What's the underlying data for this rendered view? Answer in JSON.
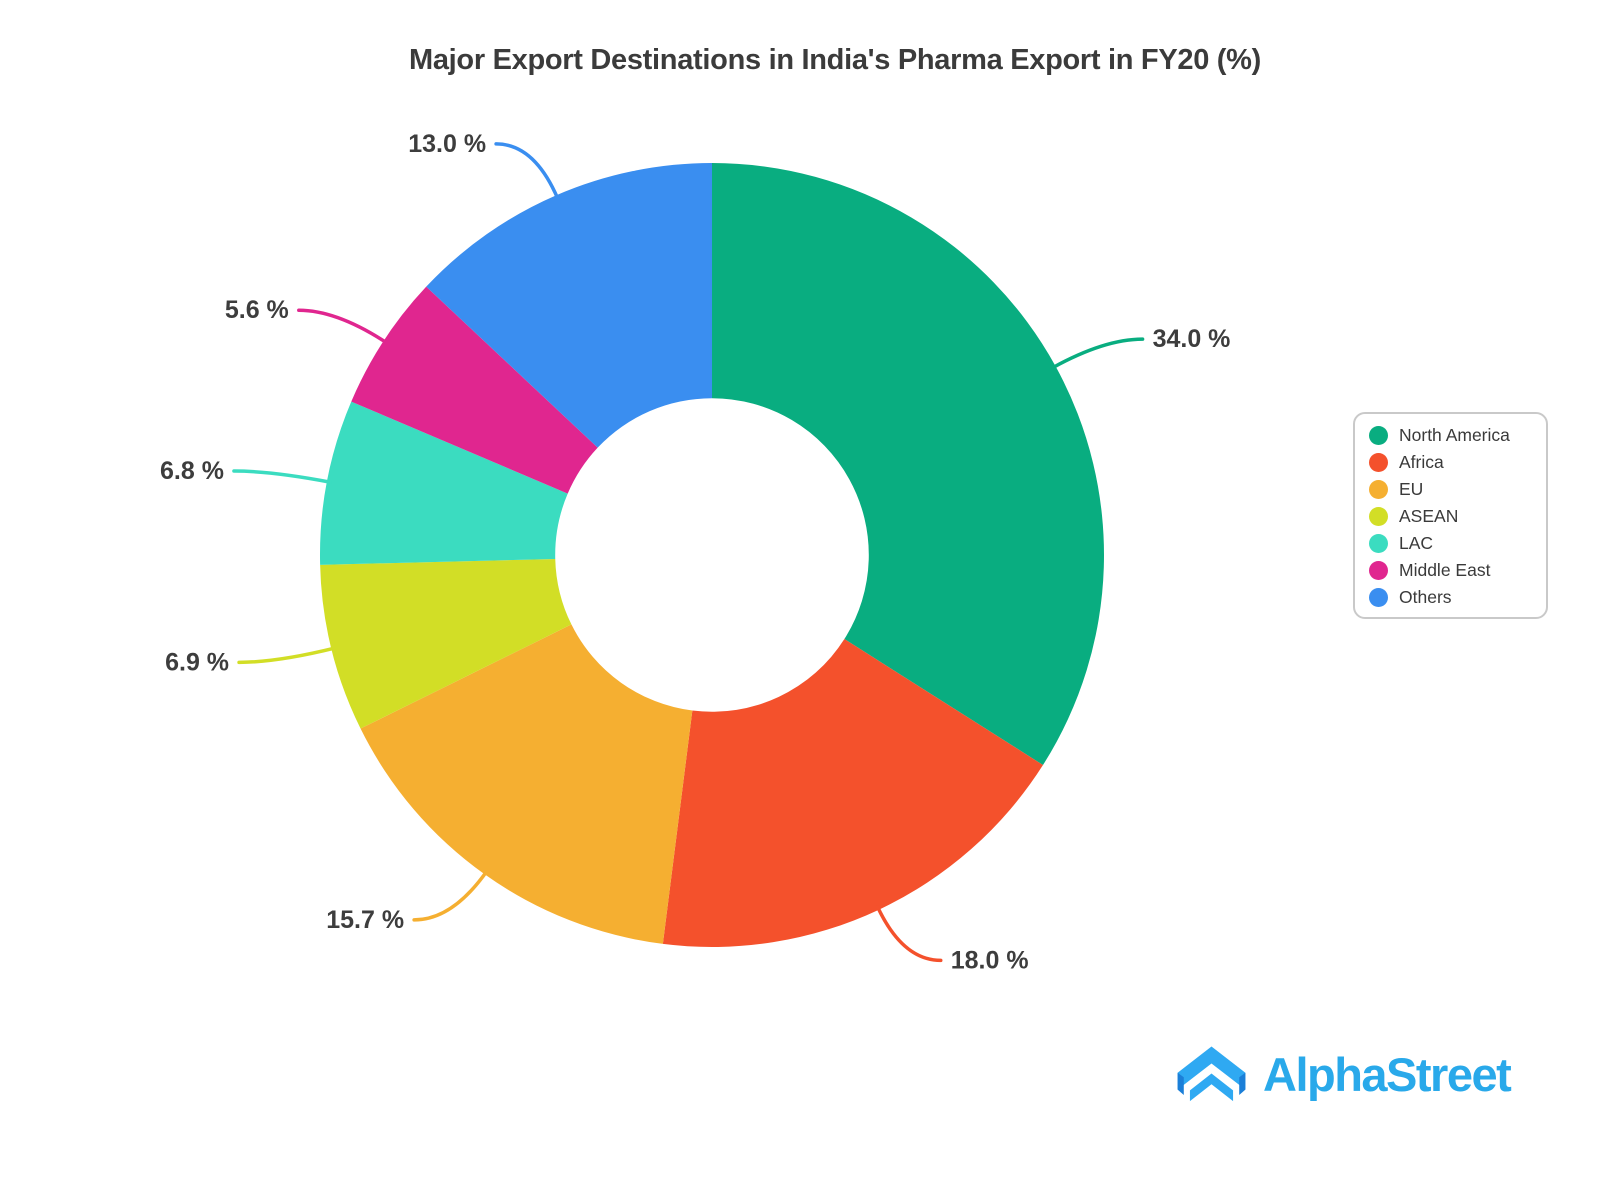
{
  "title": "Major Export Destinations in India's Pharma Export in FY20 (%)",
  "chart_data": {
    "type": "pie",
    "subtype": "donut",
    "title": "Major Export Destinations in India's Pharma Export in FY20 (%)",
    "categories": [
      "North America",
      "Africa",
      "EU",
      "ASEAN",
      "LAC",
      "Middle East",
      "Others"
    ],
    "values": [
      34.0,
      18.0,
      15.7,
      6.9,
      6.8,
      5.6,
      13.0
    ],
    "value_labels": [
      "34.0 %",
      "18.0 %",
      "15.7 %",
      "6.9 %",
      "6.8 %",
      "5.6 %",
      "13.0 %"
    ],
    "colors": [
      "#09ad80",
      "#f4512c",
      "#f5af31",
      "#d2de26",
      "#3bdcc0",
      "#e0268f",
      "#3a8ef0"
    ],
    "start_angle_deg": 0,
    "direction": "clockwise",
    "inner_radius_ratio": 0.4,
    "grid": false,
    "legend_position": "right",
    "label_color": "#3d3d3d"
  },
  "legend": {
    "items": [
      {
        "label": "North America",
        "color": "#09ad80"
      },
      {
        "label": "Africa",
        "color": "#f4512c"
      },
      {
        "label": "EU",
        "color": "#f5af31"
      },
      {
        "label": "ASEAN",
        "color": "#d2de26"
      },
      {
        "label": "LAC",
        "color": "#3bdcc0"
      },
      {
        "label": "Middle East",
        "color": "#e0268f"
      },
      {
        "label": "Others",
        "color": "#3a8ef0"
      }
    ]
  },
  "branding": {
    "logo_text": "AlphaStreet",
    "logo_color": "#29a9ea",
    "logo_icon": "alphastreet-chevron-icon",
    "logo_icon_light": "#2fa9f2",
    "logo_icon_dark": "#1b7fd8"
  }
}
